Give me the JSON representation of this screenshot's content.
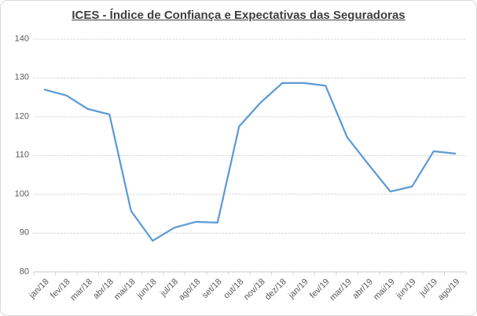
{
  "chart_data": {
    "type": "line",
    "title": "ICES - Índice de Confiança e Expectativas das Seguradoras",
    "categories": [
      "jan/18",
      "fev/18",
      "mar/18",
      "abr/18",
      "mai/18",
      "jun/18",
      "jul/18",
      "ago/18",
      "set/18",
      "out/18",
      "nov/18",
      "dez/18",
      "jan/19",
      "fev/19",
      "mar/19",
      "abr/19",
      "mai/19",
      "jun/19",
      "jul/19",
      "ago/19"
    ],
    "values": [
      127,
      125.5,
      122,
      120.6,
      95.7,
      88,
      91.4,
      92.9,
      92.7,
      117.5,
      123.7,
      128.7,
      128.7,
      128,
      114.7,
      107.6,
      100.7,
      102,
      111.1,
      110.5
    ],
    "xlabel": "",
    "ylabel": "",
    "ylim": [
      80,
      140
    ],
    "yticks": [
      140,
      130,
      120,
      110,
      100,
      90,
      80
    ],
    "grid": true,
    "legend": "none",
    "colors": {
      "line": "#5b9bd5",
      "gridline": "#d9d9d9",
      "axis": "#d0d0d0",
      "tick_label": "#595959",
      "title": "#3f3f3f"
    }
  }
}
